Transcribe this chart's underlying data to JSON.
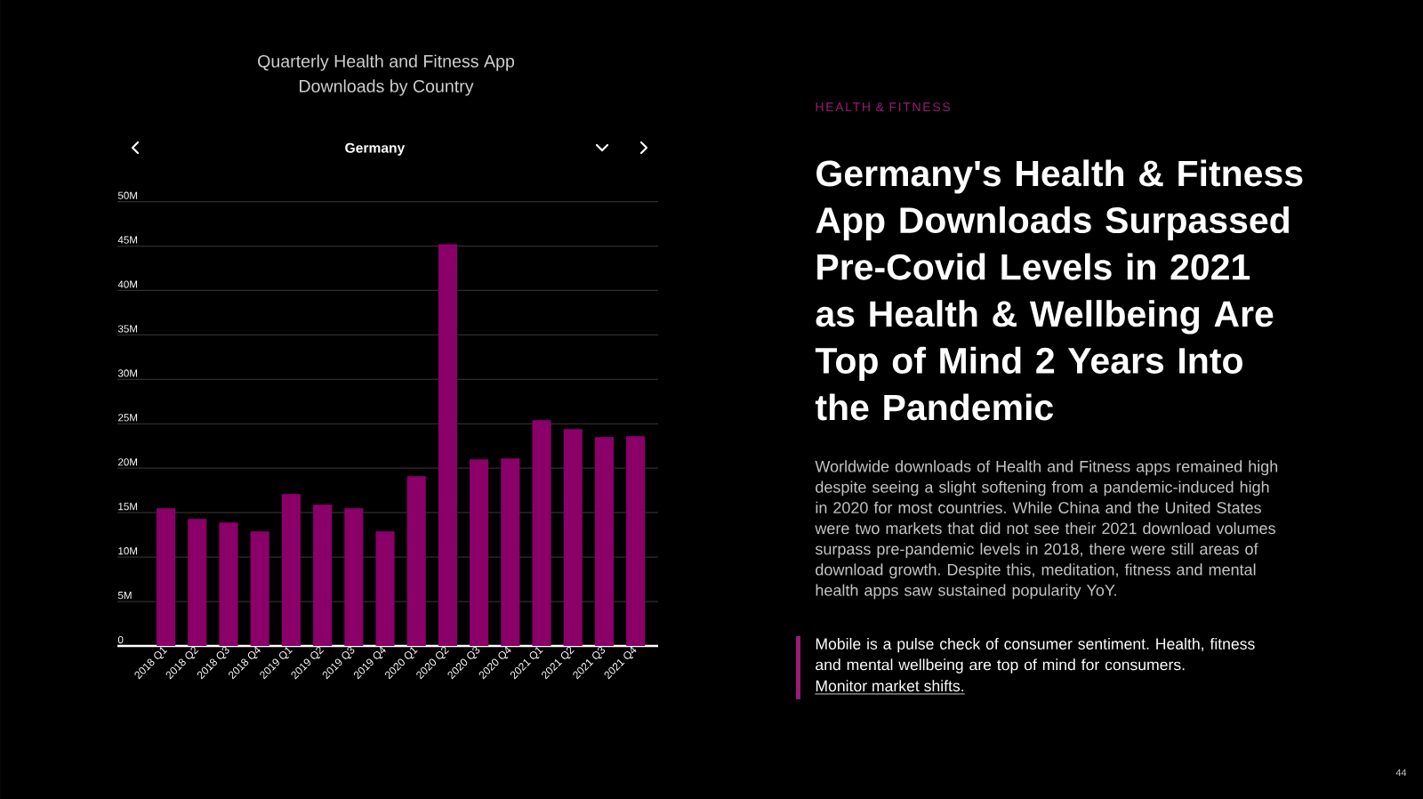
{
  "chart_data": {
    "type": "bar",
    "title": "Quarterly Health and Fitness App Downloads by Country",
    "subtitle": "Germany",
    "categories": [
      "2018 Q1",
      "2018 Q2",
      "2018 Q3",
      "2018 Q4",
      "2019 Q1",
      "2019 Q2",
      "2019 Q3",
      "2019 Q4",
      "2020 Q1",
      "2020 Q2",
      "2020 Q3",
      "2020 Q4",
      "2021 Q1",
      "2021 Q2",
      "2021 Q3",
      "2021 Q4"
    ],
    "values": [
      15.5,
      14.3,
      13.9,
      12.9,
      17.1,
      15.9,
      15.5,
      12.9,
      19.1,
      45.2,
      21.0,
      21.1,
      25.4,
      24.4,
      23.5,
      23.6
    ],
    "color": "#8b0068",
    "ylim": [
      0,
      50
    ],
    "yticks": [
      0,
      {
        "value": 5,
        "label": "5M"
      },
      {
        "value": 10,
        "label": "10M"
      },
      {
        "value": 15,
        "label": "15M"
      },
      {
        "value": 20,
        "label": "20M"
      },
      {
        "value": 25,
        "label": "25M"
      },
      {
        "value": 30,
        "label": "30M"
      },
      {
        "value": 35,
        "label": "35M"
      },
      {
        "value": 40,
        "label": "40M"
      },
      {
        "value": 45,
        "label": "45M"
      },
      {
        "value": 50,
        "label": "50M"
      }
    ],
    "grid": "y",
    "annotations": [
      "HEALTH & FITNESS",
      "Germany's Health & Fitness App Downloads Surpassed Pre-Covid Levels in 2021 as Health & Wellbeing Are Top of Mind 2 Years Into the Pandemic",
      "Worldwide downloads of Health and Fitness apps remained high despite seeing a slight softening from a pandemic-induced high in 2020 for most countries. While China and the United States were two markets that did not see their 2021 download volumes surpass pre-pandemic levels in 2018, there were still areas of download growth. Despite this, meditation, fitness and mental health apps saw sustained popularity YoY.",
      "Mobile is a pulse check of consumer sentiment. Health, fitness and mental wellbeing are top of mind for consumers.",
      "Monitor market shifts.",
      "44"
    ]
  }
}
